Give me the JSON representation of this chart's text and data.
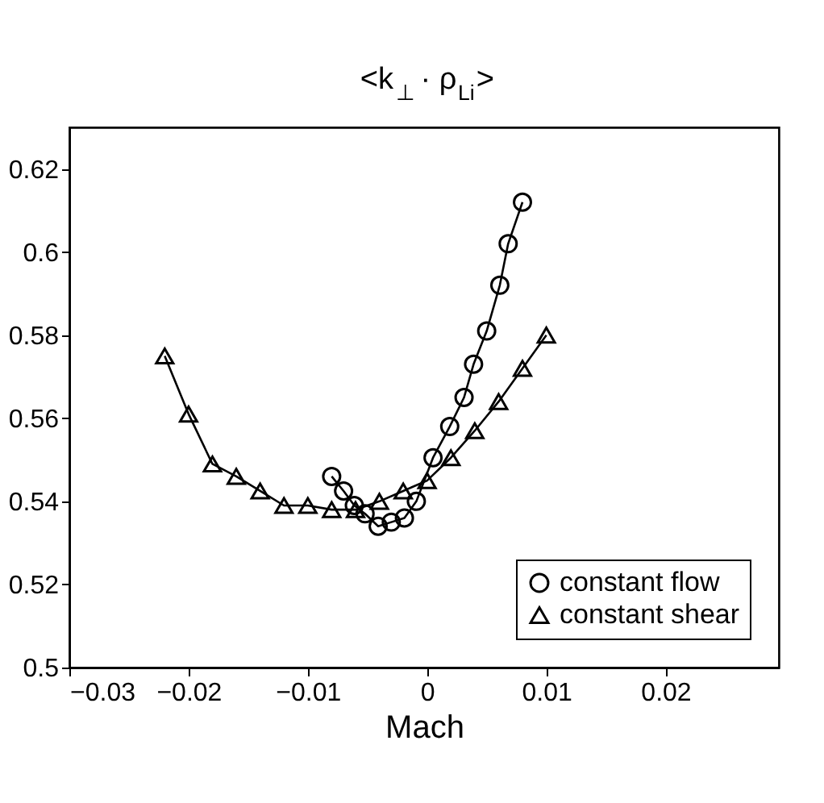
{
  "chart_data": {
    "type": "line",
    "title": "<k$_{⊥}$ · ρ$_{Li}$>",
    "xlabel": "Mach",
    "xlim": [
      -0.03,
      0.0295
    ],
    "ylim": [
      0.5,
      0.63
    ],
    "xticks": [
      -0.03,
      -0.02,
      -0.01,
      0,
      0.01,
      0.02
    ],
    "yticks": [
      0.5,
      0.52,
      0.54,
      0.56,
      0.58,
      0.6,
      0.62
    ],
    "grid": false,
    "legend": "bottom right",
    "line_style": "solid",
    "series": [
      {
        "name": "constant flow",
        "color": "#000000",
        "marker": "circle",
        "x": [
          -0.008,
          -0.007,
          -0.0061,
          -0.0052,
          -0.0041,
          -0.003,
          -0.0019,
          -0.0009,
          0.0005,
          0.0019,
          0.0031,
          0.0039,
          0.005,
          0.0061,
          0.0068,
          0.008
        ],
        "values": [
          0.546,
          0.5425,
          0.539,
          0.537,
          0.534,
          0.535,
          0.536,
          0.54,
          0.5505,
          0.558,
          0.565,
          0.573,
          0.581,
          0.592,
          0.602,
          0.612
        ]
      },
      {
        "name": "constant shear",
        "color": "#000000",
        "marker": "triangle",
        "x": [
          -0.022,
          -0.02,
          -0.018,
          -0.016,
          -0.014,
          -0.012,
          -0.01,
          -0.008,
          -0.006,
          -0.004,
          -0.002,
          0,
          0.002,
          0.004,
          0.006,
          0.008,
          0.01
        ],
        "values": [
          0.575,
          0.561,
          0.549,
          0.546,
          0.5425,
          0.539,
          0.539,
          0.538,
          0.538,
          0.54,
          0.5425,
          0.545,
          0.5505,
          0.557,
          0.564,
          0.572,
          0.58
        ]
      }
    ]
  }
}
